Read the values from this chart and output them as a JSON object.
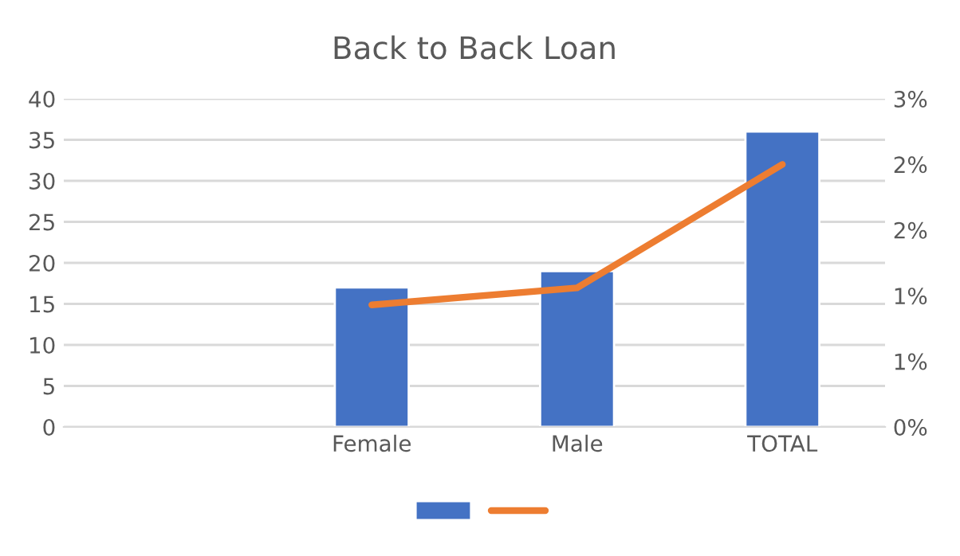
{
  "chart_data": {
    "type": "bar",
    "title": "Back to Back Loan",
    "categories": [
      null,
      "Female",
      "Male",
      "TOTAL"
    ],
    "series": [
      {
        "color": "#4472c4",
        "values": [
          null,
          17,
          19,
          36
        ]
      },
      {
        "type": "line",
        "axis": "y2",
        "color": "#ed7d31",
        "values": [
          null,
          0.93,
          1.06,
          2.0
        ]
      }
    ],
    "ylim": [
      0,
      40
    ],
    "yticks": [
      0,
      5,
      10,
      15,
      20,
      25,
      30,
      35,
      40
    ],
    "y2lim": [
      0,
      2.5
    ],
    "y2ticks": [
      {
        "value": 0,
        "label": "0%"
      },
      {
        "value": 0.5,
        "label": "1%"
      },
      {
        "value": 1.0,
        "label": "1%"
      },
      {
        "value": 1.5,
        "label": "2%"
      },
      {
        "value": 2.0,
        "label": "2%"
      },
      {
        "value": 2.5,
        "label": "3%"
      }
    ],
    "grid": "y",
    "marker": "none",
    "line_style": "solid"
  }
}
